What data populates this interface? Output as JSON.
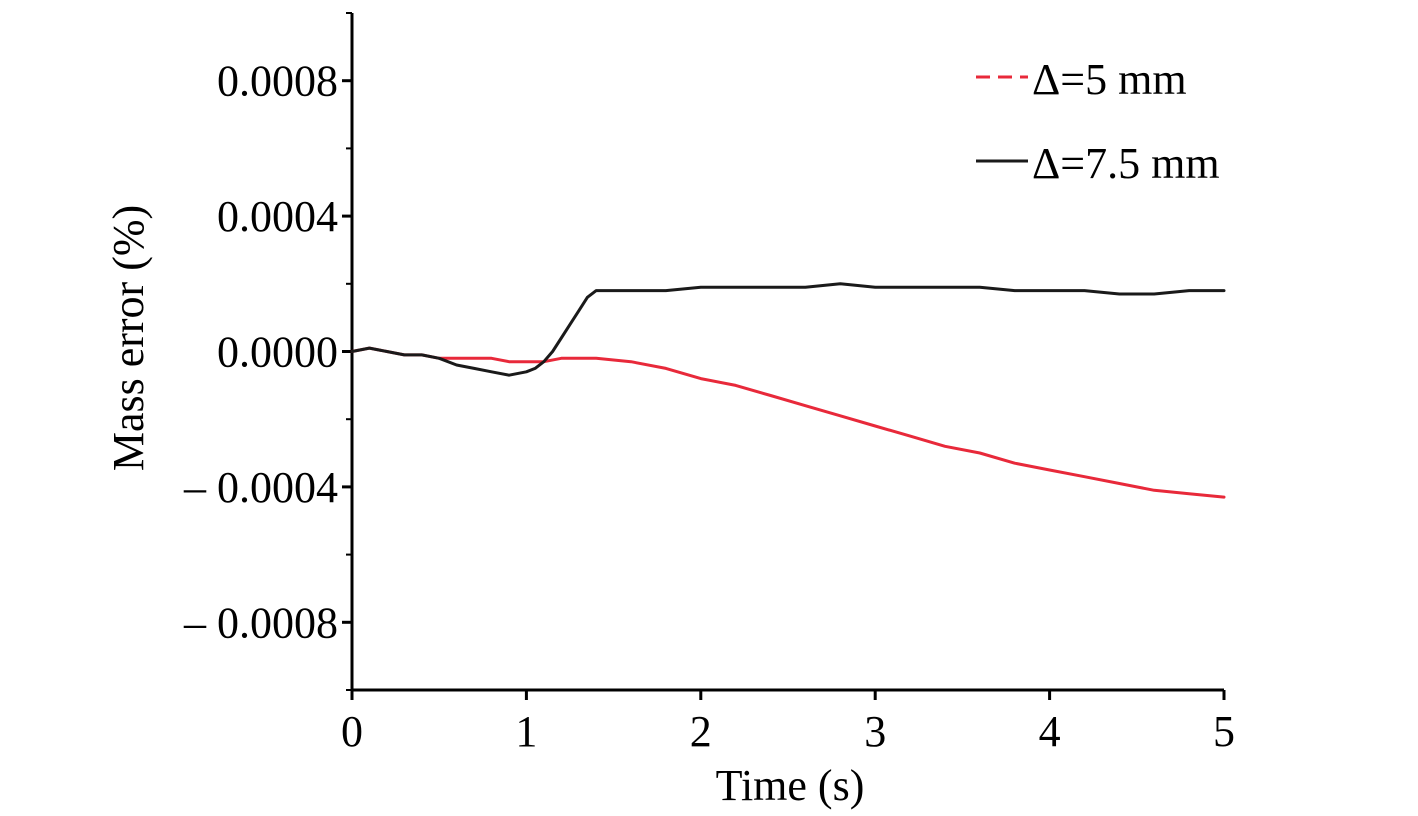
{
  "chart_data": {
    "type": "line",
    "title": "",
    "xlabel": "Time (s)",
    "ylabel": "Mass error (%)",
    "xlim": [
      0,
      5
    ],
    "ylim": [
      -0.001,
      0.001
    ],
    "x_ticks": [
      0,
      1,
      2,
      3,
      4,
      5
    ],
    "x_tick_labels": [
      "0",
      "1",
      "2",
      "3",
      "4",
      "5"
    ],
    "y_ticks": [
      0.0008,
      0.0004,
      0.0,
      -0.0004,
      -0.0008
    ],
    "y_tick_labels": [
      "0.0008",
      "0.0004",
      "0.0000",
      "– 0.0004",
      "– 0.0008"
    ],
    "grid": false,
    "legend_position": "top-right",
    "series": [
      {
        "name": "Δ=5 mm",
        "color": "#e8293a",
        "dash": "dashed",
        "x": [
          0,
          0.1,
          0.2,
          0.3,
          0.4,
          0.5,
          0.6,
          0.7,
          0.8,
          0.9,
          1.0,
          1.1,
          1.2,
          1.3,
          1.4,
          1.6,
          1.8,
          2.0,
          2.2,
          2.4,
          2.6,
          2.8,
          3.0,
          3.2,
          3.4,
          3.6,
          3.8,
          4.0,
          4.2,
          4.4,
          4.6,
          4.8,
          5.0
        ],
        "y": [
          0.0,
          1e-05,
          0.0,
          -1e-05,
          -1e-05,
          -2e-05,
          -2e-05,
          -2e-05,
          -2e-05,
          -3e-05,
          -3e-05,
          -3e-05,
          -2e-05,
          -2e-05,
          -2e-05,
          -3e-05,
          -5e-05,
          -8e-05,
          -0.0001,
          -0.00013,
          -0.00016,
          -0.00019,
          -0.00022,
          -0.00025,
          -0.00028,
          -0.0003,
          -0.00033,
          -0.00035,
          -0.00037,
          -0.00039,
          -0.00041,
          -0.00042,
          -0.00043
        ]
      },
      {
        "name": "Δ=7.5 mm",
        "color": "#1a1a1a",
        "dash": "solid",
        "x": [
          0,
          0.1,
          0.2,
          0.3,
          0.4,
          0.5,
          0.6,
          0.7,
          0.8,
          0.9,
          1.0,
          1.05,
          1.1,
          1.15,
          1.2,
          1.25,
          1.3,
          1.35,
          1.4,
          1.5,
          1.6,
          1.8,
          2.0,
          2.2,
          2.4,
          2.6,
          2.8,
          3.0,
          3.2,
          3.4,
          3.6,
          3.8,
          4.0,
          4.2,
          4.4,
          4.6,
          4.8,
          5.0
        ],
        "y": [
          0.0,
          1e-05,
          0.0,
          -1e-05,
          -1e-05,
          -2e-05,
          -4e-05,
          -5e-05,
          -6e-05,
          -7e-05,
          -6e-05,
          -5e-05,
          -3e-05,
          0.0,
          4e-05,
          8e-05,
          0.00012,
          0.00016,
          0.00018,
          0.00018,
          0.00018,
          0.00018,
          0.00019,
          0.00019,
          0.00019,
          0.00019,
          0.0002,
          0.00019,
          0.00019,
          0.00019,
          0.00019,
          0.00018,
          0.00018,
          0.00018,
          0.00017,
          0.00017,
          0.00018,
          0.00018
        ]
      }
    ]
  }
}
